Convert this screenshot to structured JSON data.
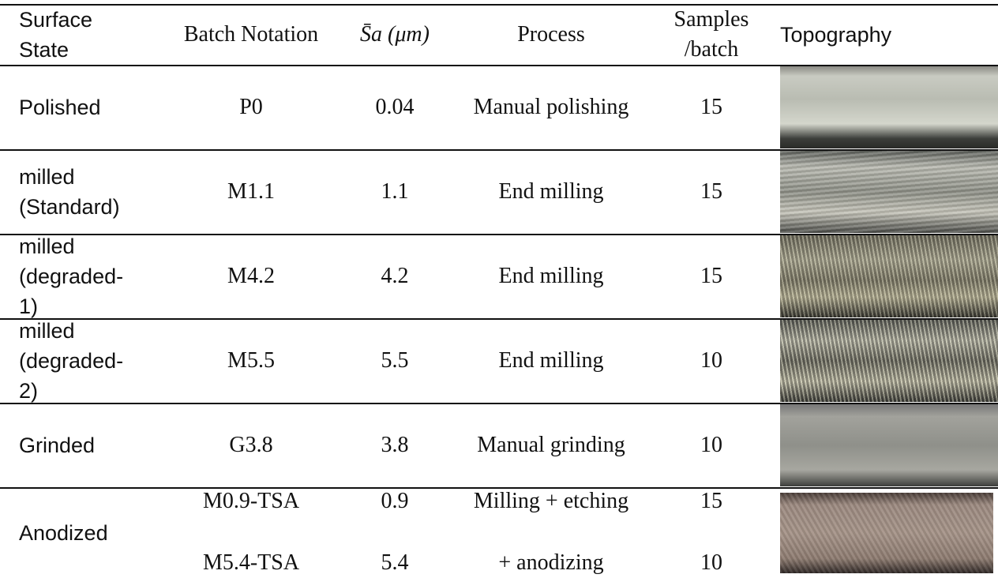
{
  "table": {
    "headers": [
      "Surface State",
      "Batch Notation",
      "S̄a (μm)",
      "Process",
      "Samples /batch",
      "Topography"
    ],
    "rows": [
      [
        "Polished",
        "P0",
        0.04,
        "Manual polishing",
        15
      ],
      [
        "milled (Standard)",
        "M1.1",
        1.1,
        "End milling",
        15
      ],
      [
        "milled (degraded-1)",
        "M4.2",
        4.2,
        "End milling",
        15
      ],
      [
        "milled (degraded-2)",
        "M5.5",
        5.5,
        "End milling",
        10
      ],
      [
        "Grinded",
        "G3.8",
        3.8,
        "Manual grinding",
        10
      ]
    ],
    "group": {
      "surface_state": "Anodized",
      "sub_rows": [
        [
          "M0.9-TSA",
          0.9,
          "Milling + etching",
          15
        ],
        [
          "M5.4-TSA",
          5.4,
          "+ anodizing",
          10
        ]
      ]
    }
  }
}
